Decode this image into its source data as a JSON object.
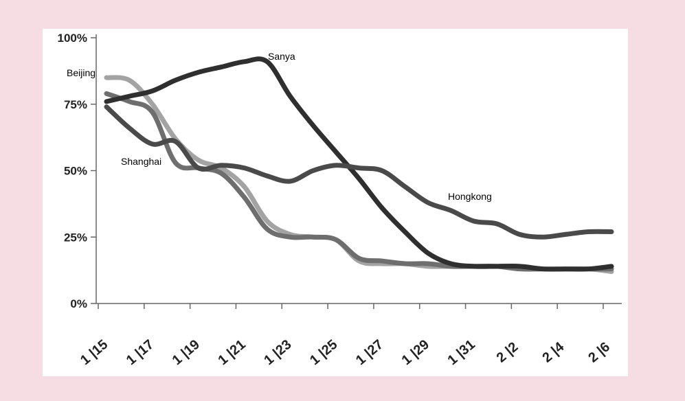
{
  "chart_data": {
    "type": "line",
    "title": "",
    "xlabel": "",
    "ylabel": "",
    "ylim": [
      0,
      100
    ],
    "yticks": [
      "0%",
      "25%",
      "50%",
      "75%",
      "100%"
    ],
    "categories": [
      "1/15",
      "1/16",
      "1/17",
      "1/18",
      "1/19",
      "1/20",
      "1/21",
      "1/22",
      "1/23",
      "1/24",
      "1/25",
      "1/26",
      "1/27",
      "1/28",
      "1/29",
      "1/30",
      "1/31",
      "2/1",
      "2/2",
      "2/3",
      "2/4",
      "2/5",
      "2/6"
    ],
    "xtick_labels": [
      "1 |15",
      "1 |17",
      "1 |19",
      "1 |21",
      "1 |23",
      "1 |25",
      "1 |27",
      "1 |29",
      "1 |31",
      "2 |2",
      "2 |4",
      "2 |6"
    ],
    "series": [
      {
        "name": "Beijing",
        "color": "#a3a3a3",
        "values": [
          85,
          84,
          75,
          62,
          54,
          51,
          44,
          31,
          26,
          25,
          24,
          16,
          15,
          15,
          14,
          14,
          14,
          14,
          14,
          13,
          13,
          13,
          12
        ]
      },
      {
        "name": "Shanghai",
        "color": "#6e6e6e",
        "values": [
          79,
          76,
          72,
          53,
          51,
          49,
          40,
          28,
          25,
          25,
          24,
          17,
          16,
          15,
          15,
          14,
          14,
          14,
          13,
          13,
          13,
          13,
          13
        ]
      },
      {
        "name": "Sanya",
        "color": "#2f2f2f",
        "values": [
          76,
          78,
          80,
          84,
          87,
          89,
          91,
          91,
          78,
          67,
          57,
          47,
          36,
          27,
          19,
          15,
          14,
          14,
          14,
          13,
          13,
          13,
          14
        ]
      },
      {
        "name": "Hongkong",
        "color": "#4a4a4a",
        "values": [
          74,
          66,
          60,
          61,
          51,
          52,
          51,
          48,
          46,
          50,
          52,
          51,
          50,
          44,
          38,
          35,
          31,
          30,
          26,
          25,
          26,
          27,
          27
        ]
      }
    ]
  }
}
